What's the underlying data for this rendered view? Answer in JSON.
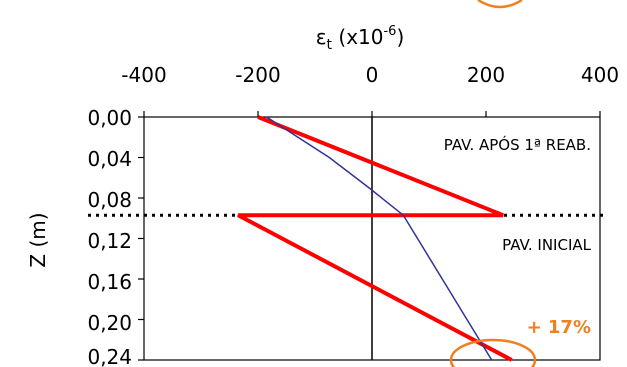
{
  "chart_data": {
    "type": "line",
    "x_axis": {
      "symbol": "ε",
      "subscript": "t",
      "unit_prefix": " (x10",
      "exponent": "-6",
      "unit_suffix": ")",
      "range": [
        -400,
        400
      ],
      "ticks": [
        "-400",
        "-200",
        "0",
        "200",
        "400"
      ],
      "position": "top"
    },
    "y_axis": {
      "label": "Z (m)",
      "range": [
        0,
        0.24
      ],
      "reversed": true,
      "ticks": [
        "0,00",
        "0,04",
        "0,08",
        "0,12",
        "0,16",
        "0,20",
        "0,24"
      ]
    },
    "series": [
      {
        "color": "#ff0000",
        "points": [
          [
            -200,
            0.0
          ],
          [
            230,
            0.097
          ],
          [
            -235,
            0.097
          ],
          [
            245,
            0.24
          ]
        ]
      },
      {
        "color": "#333399",
        "points": [
          [
            -185,
            0.0
          ],
          [
            -75,
            0.04
          ],
          [
            -5,
            0.07
          ],
          [
            55,
            0.097
          ],
          [
            210,
            0.24
          ]
        ]
      }
    ],
    "interface_depth": 0.097,
    "annotations": {
      "after": "PAV. APÓS 1ª REAB.",
      "initial": "PAV. INICIAL",
      "change": "+ 17%"
    },
    "accent_color": "#f07f1e",
    "grid": false
  }
}
